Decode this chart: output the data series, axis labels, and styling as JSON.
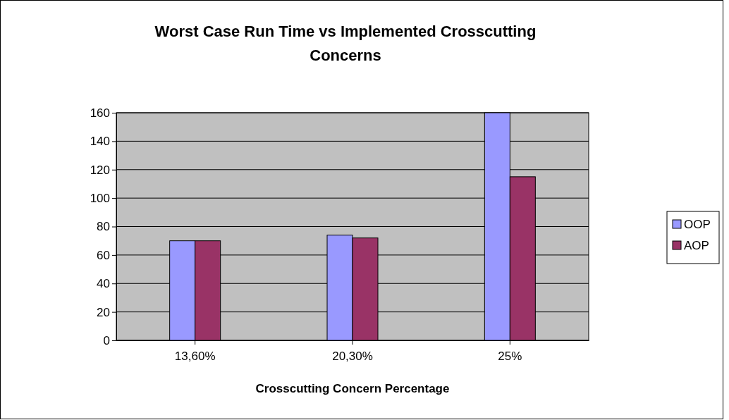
{
  "chart_data": {
    "type": "bar",
    "title": "Worst Case Run Time vs Implemented Crosscutting Concerns",
    "xlabel": "Crosscutting Concern Percentage",
    "categories": [
      "13,60%",
      "20,30%",
      "25%"
    ],
    "series": [
      {
        "name": "OOP",
        "color": "#9999ff",
        "values": [
          70,
          74,
          160
        ]
      },
      {
        "name": "AOP",
        "color": "#993366",
        "values": [
          70,
          72,
          115
        ]
      }
    ],
    "ylim": [
      0,
      160
    ],
    "yticks": [
      0,
      20,
      40,
      60,
      80,
      100,
      120,
      140,
      160
    ],
    "grid": "y",
    "legend": "right"
  }
}
